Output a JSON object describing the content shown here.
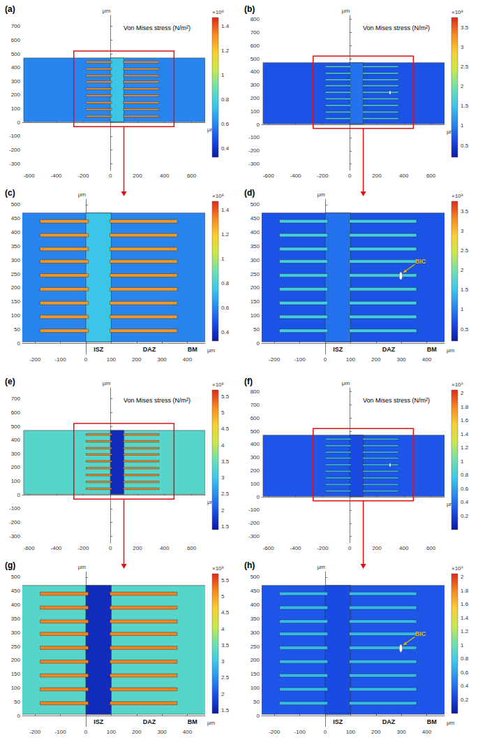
{
  "colormap": [
    "#0b1aa0",
    "#1a4be6",
    "#2a8cf0",
    "#3cc8e8",
    "#6ee0b0",
    "#c8e84a",
    "#f8d030",
    "#f88a20",
    "#e02818"
  ],
  "geometry": {
    "matrix": [
      -640,
      700,
      5,
      470
    ],
    "isz": [
      0,
      100,
      5,
      470
    ],
    "fiber_y": [
      45,
      95,
      145,
      195,
      245,
      295,
      340,
      390,
      440
    ],
    "fiber_left": [
      -180,
      10
    ],
    "fiber_right": [
      95,
      360
    ],
    "fiber_thickness": 12
  },
  "chart_data": [
    {
      "type": "contour",
      "label": "(a)",
      "title": "Von Mises stress (N/m²)",
      "xlabel": "μm",
      "ylabel": "μm",
      "xlim": [
        -650,
        700
      ],
      "xticks": [
        -600,
        -400,
        -200,
        0,
        200,
        400,
        600
      ],
      "ylim": [
        -350,
        780
      ],
      "yticks": [
        -300,
        -200,
        -100,
        0,
        100,
        200,
        300,
        400,
        500,
        600,
        700
      ],
      "grid": false,
      "stress": {
        "matrix": 0.6,
        "isz": 0.75,
        "fibers": 1.3
      },
      "colorbar": {
        "range": [
          0.33,
          1.47
        ],
        "ticks": [
          0.4,
          0.6,
          0.8,
          1,
          1.2,
          1.4
        ],
        "label": "×10⁸"
      },
      "zoom_box": [
        -270,
        470,
        -30,
        520
      ],
      "annotations": []
    },
    {
      "type": "contour",
      "label": "(b)",
      "title": "Von Mises stress (N/m²)",
      "xlabel": "μm",
      "ylabel": "μm",
      "xlim": [
        -650,
        700
      ],
      "xticks": [
        -600,
        -400,
        -200,
        0,
        200,
        400,
        600
      ],
      "ylim": [
        -350,
        830
      ],
      "yticks": [
        -300,
        -200,
        -100,
        0,
        100,
        200,
        300,
        400,
        500,
        600,
        700,
        800
      ],
      "grid": false,
      "stress": {
        "matrix": 0.7,
        "isz": 0.9,
        "fibers": 1.6
      },
      "colorbar": {
        "range": [
          0.2,
          3.75
        ],
        "ticks": [
          0.5,
          1,
          1.5,
          2,
          2.5,
          3,
          3.5
        ],
        "label": "×10⁸"
      },
      "crack": {
        "x": 298,
        "y": 243,
        "rx": 6,
        "ry": 14
      },
      "zoom_box": [
        -270,
        470,
        -30,
        520
      ],
      "annotations": []
    },
    {
      "type": "contour",
      "label": "(c)",
      "xlabel": "μm",
      "ylabel": "μm",
      "xlim": [
        -250,
        470
      ],
      "xticks": [
        -200,
        -100,
        0,
        100,
        200,
        300,
        400
      ],
      "ylim": [
        -40,
        520
      ],
      "yticks": [
        0,
        50,
        100,
        150,
        200,
        250,
        300,
        350,
        400,
        450,
        500
      ],
      "grid": false,
      "stress": {
        "matrix": 0.6,
        "isz": 0.75,
        "fibers": 1.3
      },
      "colorbar": {
        "range": [
          0.33,
          1.47
        ],
        "ticks": [
          0.4,
          0.6,
          0.8,
          1,
          1.2,
          1.4
        ],
        "label": "×10⁸"
      },
      "annotations": [
        {
          "text": "ISZ",
          "x": 50,
          "y": -22
        },
        {
          "text": "DAZ",
          "x": 250,
          "y": -22
        },
        {
          "text": "BM",
          "x": 420,
          "y": -22
        }
      ]
    },
    {
      "type": "contour",
      "label": "(d)",
      "xlabel": "μm",
      "ylabel": "μm",
      "xlim": [
        -250,
        470
      ],
      "xticks": [
        -200,
        -100,
        0,
        100,
        200,
        300,
        400
      ],
      "ylim": [
        -40,
        520
      ],
      "yticks": [
        0,
        50,
        100,
        150,
        200,
        250,
        300,
        350,
        400,
        450,
        500
      ],
      "grid": false,
      "stress": {
        "matrix": 0.7,
        "isz": 0.9,
        "fibers": 1.6
      },
      "colorbar": {
        "range": [
          0.2,
          3.75
        ],
        "ticks": [
          0.5,
          1,
          1.5,
          2,
          2.5,
          3,
          3.5
        ],
        "label": "×10⁸"
      },
      "crack": {
        "x": 298,
        "y": 243,
        "rx": 6,
        "ry": 14
      },
      "annotations": [
        {
          "text": "ISZ",
          "x": 50,
          "y": -22
        },
        {
          "text": "DAZ",
          "x": 250,
          "y": -22
        },
        {
          "text": "BM",
          "x": 420,
          "y": -22
        },
        {
          "text": "BIC",
          "x": 375,
          "y": 295,
          "arrow_to": [
            308,
            255
          ],
          "color": "#e6b800"
        }
      ]
    },
    {
      "type": "contour",
      "label": "(e)",
      "title": "Von Mises stress (N/m²)",
      "xlabel": "μm",
      "ylabel": "μm",
      "xlim": [
        -650,
        700
      ],
      "xticks": [
        -600,
        -400,
        -200,
        0,
        200,
        400,
        600
      ],
      "ylim": [
        -350,
        780
      ],
      "yticks": [
        -300,
        -200,
        -100,
        0,
        100,
        200,
        300,
        400,
        500,
        600,
        700
      ],
      "grid": false,
      "stress": {
        "matrix": 3.3,
        "isz": 1.6,
        "fibers": 5.2
      },
      "colorbar": {
        "range": [
          1.4,
          5.7
        ],
        "ticks": [
          1.5,
          2,
          2.5,
          3,
          3.5,
          4,
          4.5,
          5,
          5.5
        ],
        "label": "×10⁸"
      },
      "zoom_box": [
        -270,
        470,
        -30,
        520
      ],
      "annotations": []
    },
    {
      "type": "contour",
      "label": "(f)",
      "title": "Von Mises stress (N/m²)",
      "xlabel": "μm",
      "ylabel": "μm",
      "xlim": [
        -650,
        700
      ],
      "xticks": [
        -600,
        -400,
        -200,
        0,
        200,
        400,
        600
      ],
      "ylim": [
        -350,
        830
      ],
      "yticks": [
        -300,
        -200,
        -100,
        0,
        100,
        200,
        300,
        400,
        500,
        600,
        700,
        800
      ],
      "grid": false,
      "stress": {
        "matrix": 0.3,
        "isz": 0.25,
        "fibers": 0.7
      },
      "colorbar": {
        "range": [
          0,
          2.05
        ],
        "ticks": [
          0.2,
          0.4,
          0.6,
          0.8,
          1,
          1.2,
          1.4,
          1.6,
          1.8,
          2
        ],
        "label": "×10⁹"
      },
      "crack": {
        "x": 298,
        "y": 243,
        "rx": 6,
        "ry": 14
      },
      "zoom_box": [
        -270,
        470,
        -30,
        520
      ],
      "annotations": []
    },
    {
      "type": "contour",
      "label": "(g)",
      "xlabel": "μm",
      "ylabel": "μm",
      "xlim": [
        -250,
        470
      ],
      "xticks": [
        -200,
        -100,
        0,
        100,
        200,
        300,
        400
      ],
      "ylim": [
        -40,
        520
      ],
      "yticks": [
        0,
        50,
        100,
        150,
        200,
        250,
        300,
        350,
        400,
        450,
        500
      ],
      "grid": false,
      "stress": {
        "matrix": 3.3,
        "isz": 1.6,
        "fibers": 5.2
      },
      "colorbar": {
        "range": [
          1.4,
          5.7
        ],
        "ticks": [
          1.5,
          2,
          2.5,
          3,
          3.5,
          4,
          4.5,
          5,
          5.5
        ],
        "label": "×10⁸"
      },
      "annotations": [
        {
          "text": "ISZ",
          "x": 50,
          "y": -22
        },
        {
          "text": "DAZ",
          "x": 250,
          "y": -22
        },
        {
          "text": "BM",
          "x": 420,
          "y": -22
        }
      ]
    },
    {
      "type": "contour",
      "label": "(h)",
      "xlabel": "μm",
      "ylabel": "μm",
      "xlim": [
        -250,
        470
      ],
      "xticks": [
        -200,
        -100,
        0,
        100,
        200,
        300,
        400
      ],
      "ylim": [
        -40,
        520
      ],
      "yticks": [
        0,
        50,
        100,
        150,
        200,
        250,
        300,
        350,
        400,
        450,
        500
      ],
      "grid": false,
      "stress": {
        "matrix": 0.3,
        "isz": 0.25,
        "fibers": 0.7
      },
      "colorbar": {
        "range": [
          0,
          2.05
        ],
        "ticks": [
          0.2,
          0.4,
          0.6,
          0.8,
          1,
          1.2,
          1.4,
          1.6,
          1.8,
          2
        ],
        "label": "×10⁹"
      },
      "crack": {
        "x": 298,
        "y": 243,
        "rx": 6,
        "ry": 14
      },
      "annotations": [
        {
          "text": "ISZ",
          "x": 50,
          "y": -22
        },
        {
          "text": "DAZ",
          "x": 250,
          "y": -22
        },
        {
          "text": "BM",
          "x": 420,
          "y": -22
        },
        {
          "text": "BIC",
          "x": 375,
          "y": 295,
          "arrow_to": [
            308,
            255
          ],
          "color": "#e6b800"
        }
      ]
    }
  ]
}
